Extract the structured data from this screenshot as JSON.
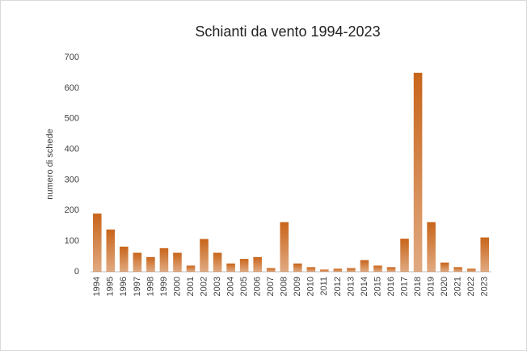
{
  "chart_data": {
    "type": "bar",
    "title": "Schianti da vento 1994-2023",
    "y_label": "numero di schede",
    "categories": [
      "1994",
      "1995",
      "1996",
      "1997",
      "1998",
      "1999",
      "2000",
      "2001",
      "2002",
      "2003",
      "2004",
      "2005",
      "2006",
      "2007",
      "2008",
      "2009",
      "2010",
      "2011",
      "2012",
      "2013",
      "2014",
      "2015",
      "2016",
      "2017",
      "2018",
      "2019",
      "2020",
      "2021",
      "2022",
      "2023"
    ],
    "values": [
      190,
      138,
      82,
      62,
      48,
      77,
      62,
      20,
      107,
      62,
      27,
      42,
      48,
      12,
      162,
      27,
      15,
      7,
      10,
      12,
      38,
      20,
      15,
      108,
      650,
      162,
      30,
      15,
      10,
      112
    ],
    "color": "#c8651b",
    "ylim": [
      0,
      700
    ],
    "yticks": [
      0,
      100,
      200,
      300,
      400,
      500,
      600,
      700
    ],
    "grid": false
  }
}
